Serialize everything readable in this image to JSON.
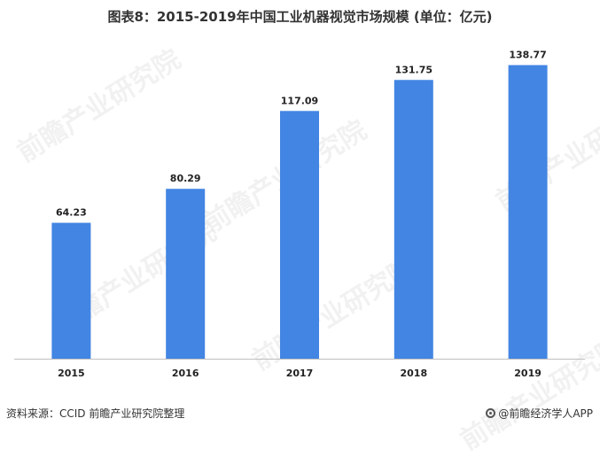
{
  "title": "图表8：2015-2019年中国工业机器视觉市场规模 (单位：亿元)",
  "watermark_text": "前瞻产业研究院",
  "source": "资料来源：CCID 前瞻产业研究院整理",
  "brand": "@前瞻经济学人APP",
  "colors": {
    "bar": "#4285e3",
    "axis": "#bfbfbf"
  },
  "chart_data": {
    "type": "bar",
    "title": "图表8：2015-2019年中国工业机器视觉市场规模 (单位：亿元)",
    "categories": [
      "2015",
      "2016",
      "2017",
      "2018",
      "2019"
    ],
    "values": [
      64.23,
      80.29,
      117.09,
      131.75,
      138.77
    ],
    "value_labels": [
      "64.23",
      "80.29",
      "117.09",
      "131.75",
      "138.77"
    ],
    "xlabel": "",
    "ylabel": "",
    "ylim": [
      0,
      150
    ],
    "grid": false,
    "legend": "none"
  }
}
